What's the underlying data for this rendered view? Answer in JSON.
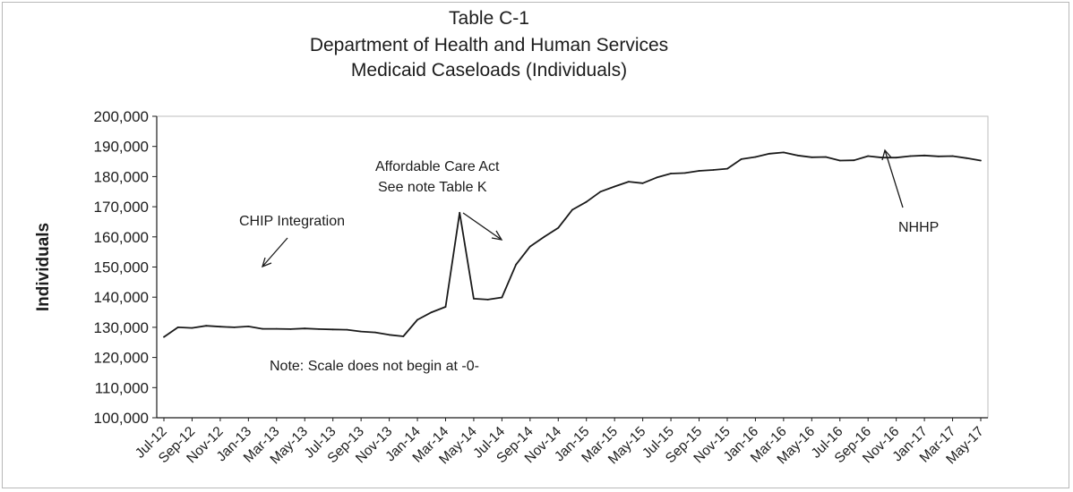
{
  "chart_data": {
    "type": "line",
    "title": [
      "Table C-1",
      "Department of Health and Human Services",
      "Medicaid Caseloads  (Individuals)"
    ],
    "ylabel": "Individuals",
    "xlabel": "",
    "ylim": [
      100000,
      200000
    ],
    "yticks": [
      100000,
      110000,
      120000,
      130000,
      140000,
      150000,
      160000,
      170000,
      180000,
      190000,
      200000
    ],
    "ytick_labels": [
      "100,000",
      "110,000",
      "120,000",
      "130,000",
      "140,000",
      "150,000",
      "160,000",
      "170,000",
      "180,000",
      "190,000",
      "200,000"
    ],
    "x_start": "Jul-12",
    "xtick_labels": [
      "Jul-12",
      "Sep-12",
      "Nov-12",
      "Jan-13",
      "Mar-13",
      "May-13",
      "Jul-13",
      "Sep-13",
      "Nov-13",
      "Jan-14",
      "Mar-14",
      "May-14",
      "Jul-14",
      "Sep-14",
      "Nov-14",
      "Jan-15",
      "Mar-15",
      "May-15",
      "Jul-15",
      "Sep-15",
      "Nov-15",
      "Jan-16",
      "Mar-16",
      "May-16",
      "Jul-16",
      "Sep-16",
      "Nov-16",
      "Jan-17",
      "Mar-17",
      "May-17"
    ],
    "grid": false,
    "series": [
      {
        "values": [
          126800,
          130000,
          129800,
          130500,
          130200,
          130000,
          130300,
          129500,
          129500,
          129400,
          129600,
          129400,
          129300,
          129200,
          128600,
          128300,
          127500,
          127000,
          132500,
          135000,
          136800,
          168000,
          139500,
          139200,
          139900,
          150800,
          156800,
          160000,
          163000,
          169000,
          171600,
          175000,
          176700,
          178300,
          177800,
          179700,
          181000,
          181200,
          181900,
          182200,
          182600,
          185800,
          186500,
          187600,
          188000,
          187000,
          186400,
          186500,
          185300,
          185400,
          186800,
          186300,
          186300,
          186800,
          187000,
          186700,
          186800,
          186100,
          185300
        ]
      }
    ],
    "annotations": [
      {
        "text": "CHIP Integration"
      },
      {
        "text": "Affordable Care Act"
      },
      {
        "text": "See note Table K"
      },
      {
        "text": "NHHP"
      },
      {
        "text": "Note:  Scale does not begin at -0-"
      }
    ],
    "colors": {
      "line": "#1a1a1a",
      "plot_border": "#bdbdbd"
    }
  }
}
